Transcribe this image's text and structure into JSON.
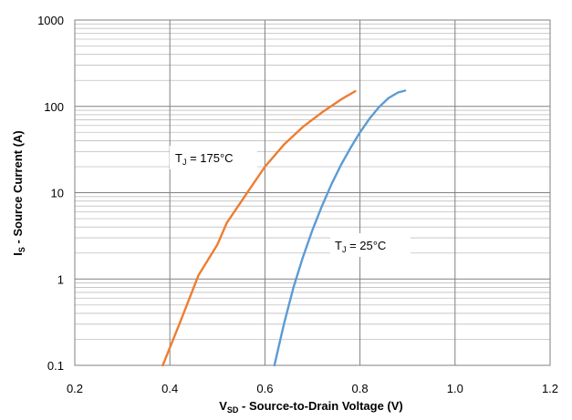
{
  "chart_data": {
    "type": "line",
    "xlabel": {
      "main": "V",
      "sub": "SD",
      "rest": " - Source-to-Drain Voltage (V)"
    },
    "ylabel": {
      "main": "I",
      "sub": "S",
      "rest": " - Source Current (A)"
    },
    "xlim": [
      0.2,
      1.2
    ],
    "ylim": [
      0.1,
      1000
    ],
    "yscale": "log",
    "grid": true,
    "x_ticks": [
      "0.2",
      "0.4",
      "0.6",
      "0.8",
      "1.0",
      "1.2"
    ],
    "y_ticks": [
      "0.1",
      "1",
      "10",
      "100",
      "1000"
    ],
    "colors": {
      "tj175": "#ED7D31",
      "tj25": "#5B9BD5",
      "grid_major": "#808080",
      "grid_minor": "#bfbfbf"
    },
    "series": [
      {
        "key": "tj175",
        "x": [
          0.385,
          0.42,
          0.46,
          0.5,
          0.52,
          0.56,
          0.6,
          0.64,
          0.68,
          0.72,
          0.76,
          0.79
        ],
        "y": [
          0.1,
          0.3,
          1.1,
          2.5,
          4.5,
          9.5,
          20,
          36,
          58,
          85,
          120,
          150
        ]
      },
      {
        "key": "tj25",
        "x": [
          0.62,
          0.64,
          0.66,
          0.68,
          0.7,
          0.72,
          0.74,
          0.76,
          0.78,
          0.8,
          0.82,
          0.84,
          0.86,
          0.88,
          0.895
        ],
        "y": [
          0.1,
          0.3,
          0.8,
          1.8,
          3.7,
          7,
          12.5,
          21,
          33,
          50,
          72,
          98,
          125,
          145,
          152
        ]
      }
    ],
    "annotations": [
      {
        "series": "tj175",
        "main": "T",
        "sub": "J",
        "rest": " = 175°C"
      },
      {
        "series": "tj25",
        "main": "T",
        "sub": "J",
        "rest": " = 25°C"
      }
    ]
  }
}
